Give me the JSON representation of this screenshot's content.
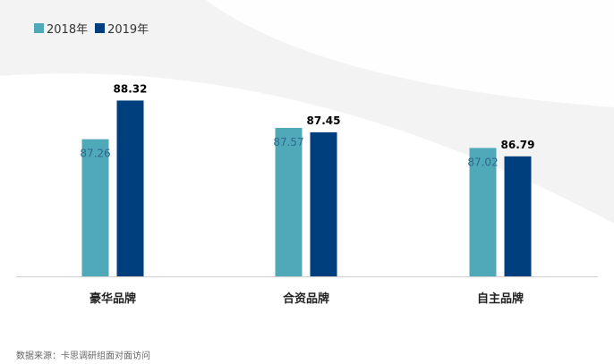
{
  "legend": {
    "items": [
      {
        "label": "2018年",
        "color": "#4fa9b8"
      },
      {
        "label": "2019年",
        "color": "#003f7d"
      }
    ]
  },
  "source_text": "数据来源：卡思调研组面对面访问",
  "chart_data": {
    "type": "bar",
    "categories": [
      "豪华品牌",
      "合资品牌",
      "自主品牌"
    ],
    "series": [
      {
        "name": "2018年",
        "values": [
          87.26,
          87.57,
          87.02
        ],
        "color": "#4fa9b8",
        "label_color": "#2e6a8e"
      },
      {
        "name": "2019年",
        "values": [
          88.32,
          87.45,
          86.79
        ],
        "color": "#003f7d",
        "label_color": "#000000"
      }
    ],
    "ylim": [
      83.5,
      88.6
    ],
    "grid": false,
    "legend_position": "top-left"
  }
}
